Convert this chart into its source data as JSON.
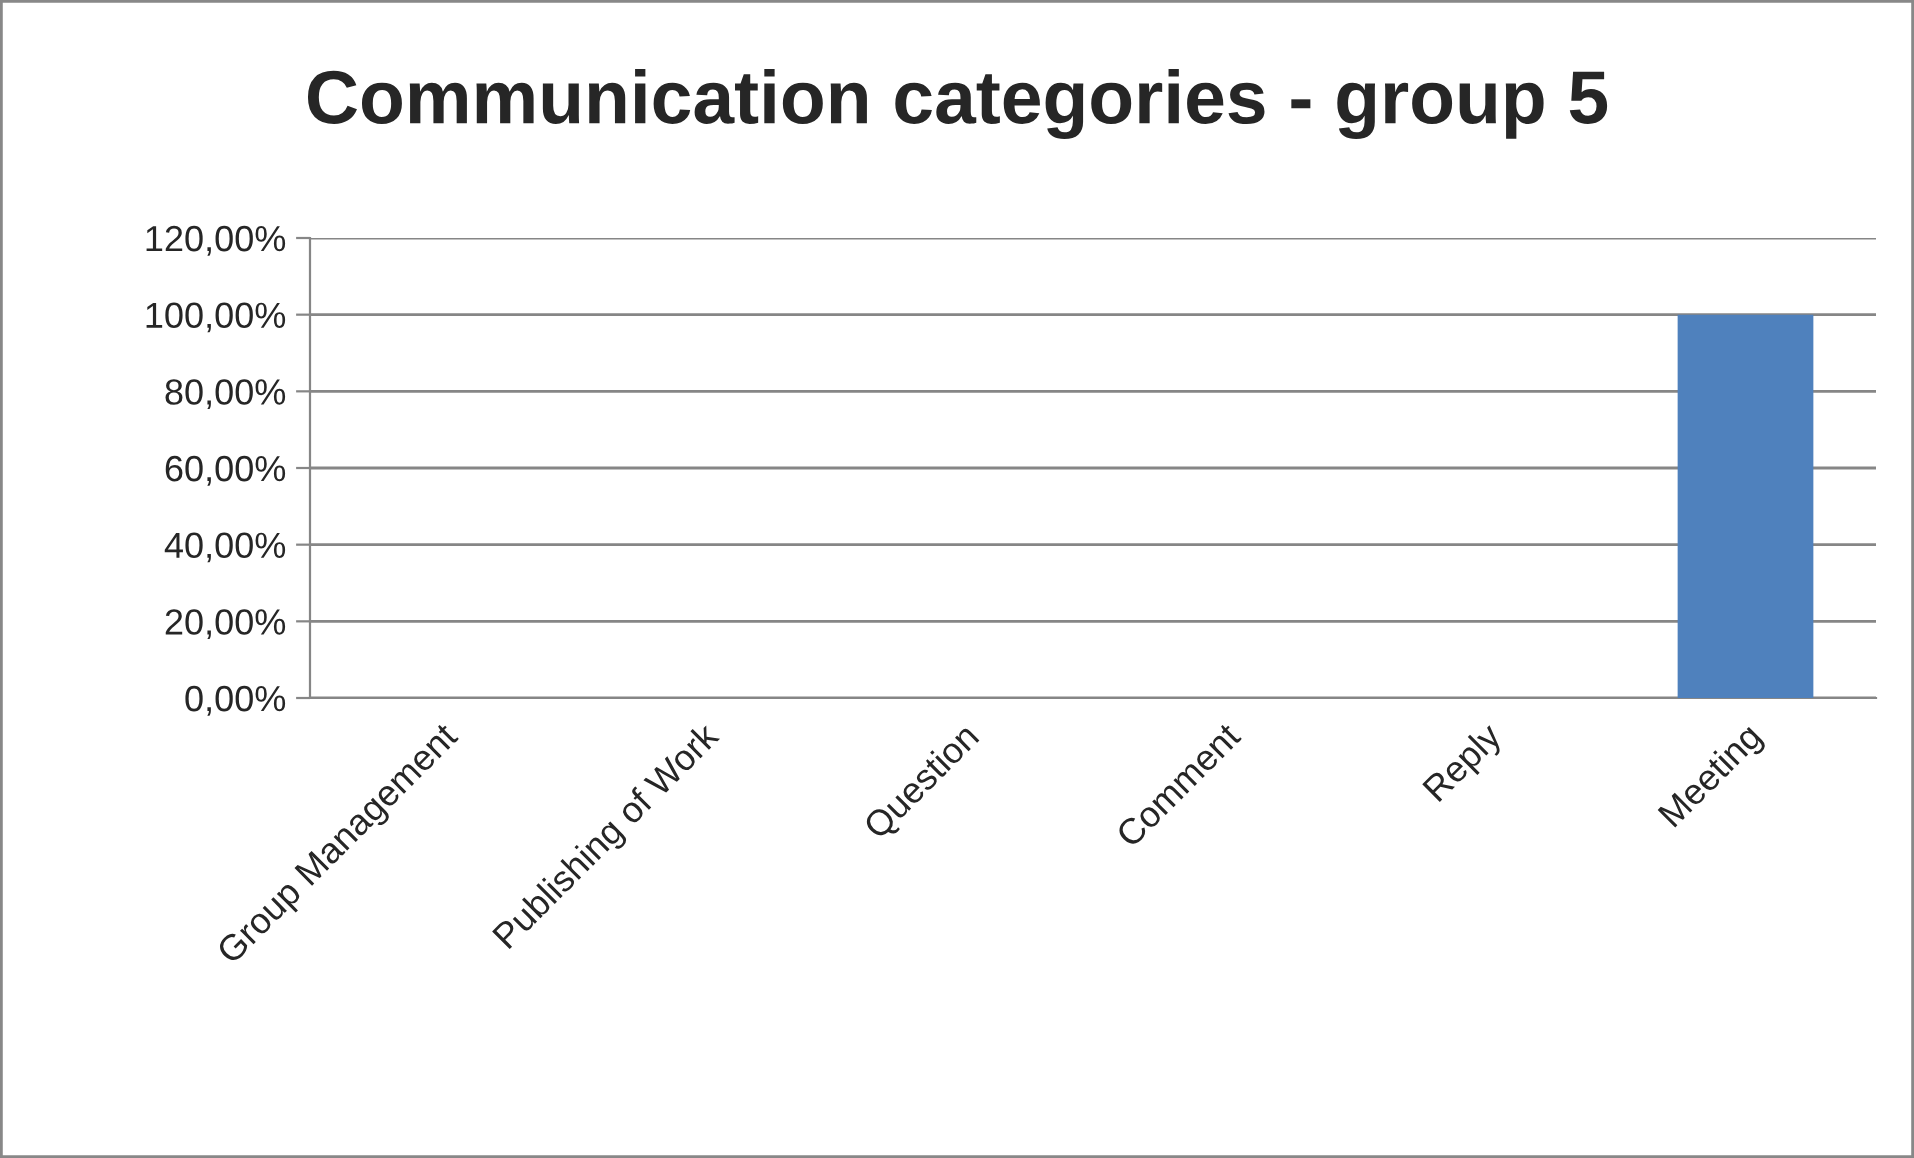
{
  "chart_data": {
    "type": "bar",
    "title": "Communication categories - group 5",
    "categories": [
      "Group Management",
      "Publishing of Work",
      "Question",
      "Comment",
      "Reply",
      "Meeting"
    ],
    "values": [
      0,
      0,
      0,
      0,
      0,
      100
    ],
    "color": "#4f81bd",
    "ylim": [
      0,
      120
    ],
    "yticks": [
      {
        "value": 0,
        "label": "0,00%"
      },
      {
        "value": 20,
        "label": "20,00%"
      },
      {
        "value": 40,
        "label": "40,00%"
      },
      {
        "value": 60,
        "label": "60,00%"
      },
      {
        "value": 80,
        "label": "80,00%"
      },
      {
        "value": 100,
        "label": "100,00%"
      },
      {
        "value": 120,
        "label": "120,00%"
      }
    ],
    "grid": "y",
    "legend": false
  }
}
